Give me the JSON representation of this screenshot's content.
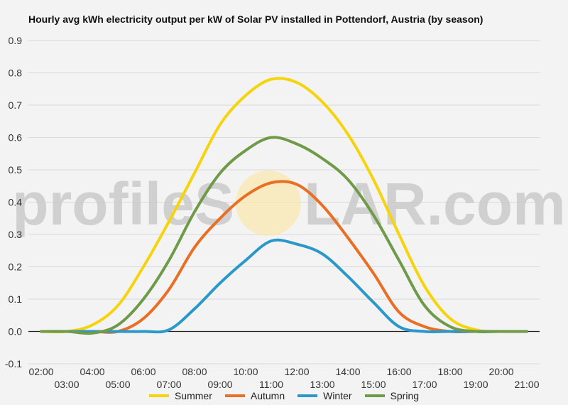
{
  "chart_data": {
    "type": "line",
    "title": "Hourly avg kWh electricity output per kW of Solar PV installed in Pottendorf, Austria (by season)",
    "ylim": [
      -0.1,
      0.9
    ],
    "yticks": [
      0.9,
      0.8,
      0.7,
      0.6,
      0.5,
      0.4,
      0.3,
      0.2,
      0.1,
      0.0,
      -0.1
    ],
    "ytick_labels": [
      "0.9",
      "0.8",
      "0.7",
      "0.6",
      "0.5",
      "0.4",
      "0.3",
      "0.2",
      "0.1",
      "0.0",
      "-0.1"
    ],
    "xlim": [
      1.5,
      21.5
    ],
    "xticks_upper": [
      "02:00",
      "04:00",
      "06:00",
      "08:00",
      "10:00",
      "12:00",
      "14:00",
      "16:00",
      "18:00",
      "20:00"
    ],
    "xticks_lower": [
      "03:00",
      "05:00",
      "07:00",
      "09:00",
      "11:00",
      "13:00",
      "15:00",
      "17:00",
      "19:00",
      "21:00"
    ],
    "x": [
      2,
      3,
      4,
      5,
      6,
      7,
      8,
      9,
      10,
      11,
      12,
      13,
      14,
      15,
      16,
      17,
      18,
      19,
      20,
      21
    ],
    "series": [
      {
        "name": "Summer",
        "color": "#f5d40b",
        "values": [
          0.0,
          0.0,
          0.02,
          0.08,
          0.2,
          0.34,
          0.49,
          0.64,
          0.73,
          0.78,
          0.77,
          0.71,
          0.61,
          0.47,
          0.3,
          0.14,
          0.04,
          0.005,
          0.0,
          0.0
        ]
      },
      {
        "name": "Autumn",
        "color": "#e86f24",
        "values": [
          0.0,
          0.0,
          0.0,
          0.0,
          0.04,
          0.13,
          0.26,
          0.35,
          0.42,
          0.46,
          0.455,
          0.39,
          0.29,
          0.18,
          0.06,
          0.015,
          0.0,
          0.0,
          0.0,
          0.0
        ]
      },
      {
        "name": "Winter",
        "color": "#2a98c9",
        "values": [
          0.0,
          0.0,
          0.0,
          0.0,
          0.0,
          0.005,
          0.07,
          0.15,
          0.22,
          0.28,
          0.27,
          0.24,
          0.17,
          0.09,
          0.015,
          0.0,
          0.0,
          0.0,
          0.0,
          0.0
        ]
      },
      {
        "name": "Spring",
        "color": "#6f9a48",
        "values": [
          0.0,
          0.0,
          -0.005,
          0.02,
          0.1,
          0.22,
          0.37,
          0.49,
          0.56,
          0.6,
          0.58,
          0.535,
          0.47,
          0.36,
          0.22,
          0.08,
          0.015,
          0.0,
          0.0,
          0.0
        ]
      }
    ],
    "legend_position": "bottom",
    "grid": true
  },
  "watermark": {
    "text_left": "profileS",
    "text_right": "LAR.com"
  }
}
